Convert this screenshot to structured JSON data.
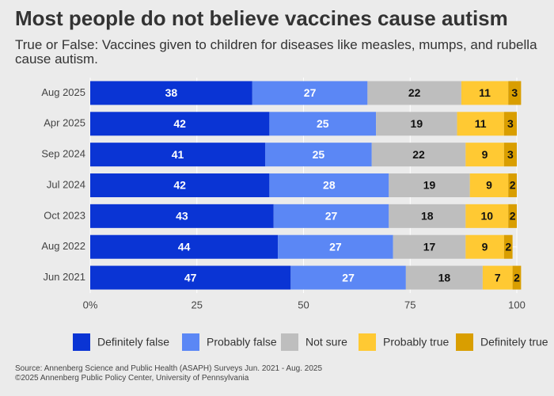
{
  "chart_data": {
    "type": "stacked-barh",
    "title": "Most people do not believe vaccines cause autism",
    "subtitle": "True or False: Vaccines given to children for diseases like measles, mumps, and rubella cause autism.",
    "categories": [
      "Aug 2025",
      "Apr 2025",
      "Sep 2024",
      "Jul 2024",
      "Oct 2023",
      "Aug 2022",
      "Jun 2021"
    ],
    "series": [
      {
        "name": "Definitely false",
        "color": "#0a34d4",
        "values": [
          38,
          42,
          41,
          42,
          43,
          44,
          47
        ]
      },
      {
        "name": "Probably false",
        "color": "#5b87f5",
        "values": [
          27,
          25,
          25,
          28,
          27,
          27,
          27
        ]
      },
      {
        "name": "Not sure",
        "color": "#bebebe",
        "values": [
          22,
          19,
          22,
          19,
          18,
          17,
          18
        ]
      },
      {
        "name": "Probably true",
        "color": "#ffc933",
        "values": [
          11,
          11,
          9,
          9,
          10,
          9,
          7
        ]
      },
      {
        "name": "Definitely true",
        "color": "#d99e00",
        "values": [
          3,
          3,
          3,
          2,
          2,
          2,
          2
        ]
      }
    ],
    "xlim": [
      0,
      100
    ],
    "xticks": [
      {
        "value": 0,
        "label": "0%"
      },
      25,
      50,
      75,
      100
    ],
    "grid": true,
    "legend": "bottom",
    "source": [
      "Source: Annenberg Science and Public Health (ASAPH) Surveys Jun. 2021 - Aug. 2025",
      "©2025 Annenberg Public Policy Center, University of Pennsylvania"
    ]
  }
}
